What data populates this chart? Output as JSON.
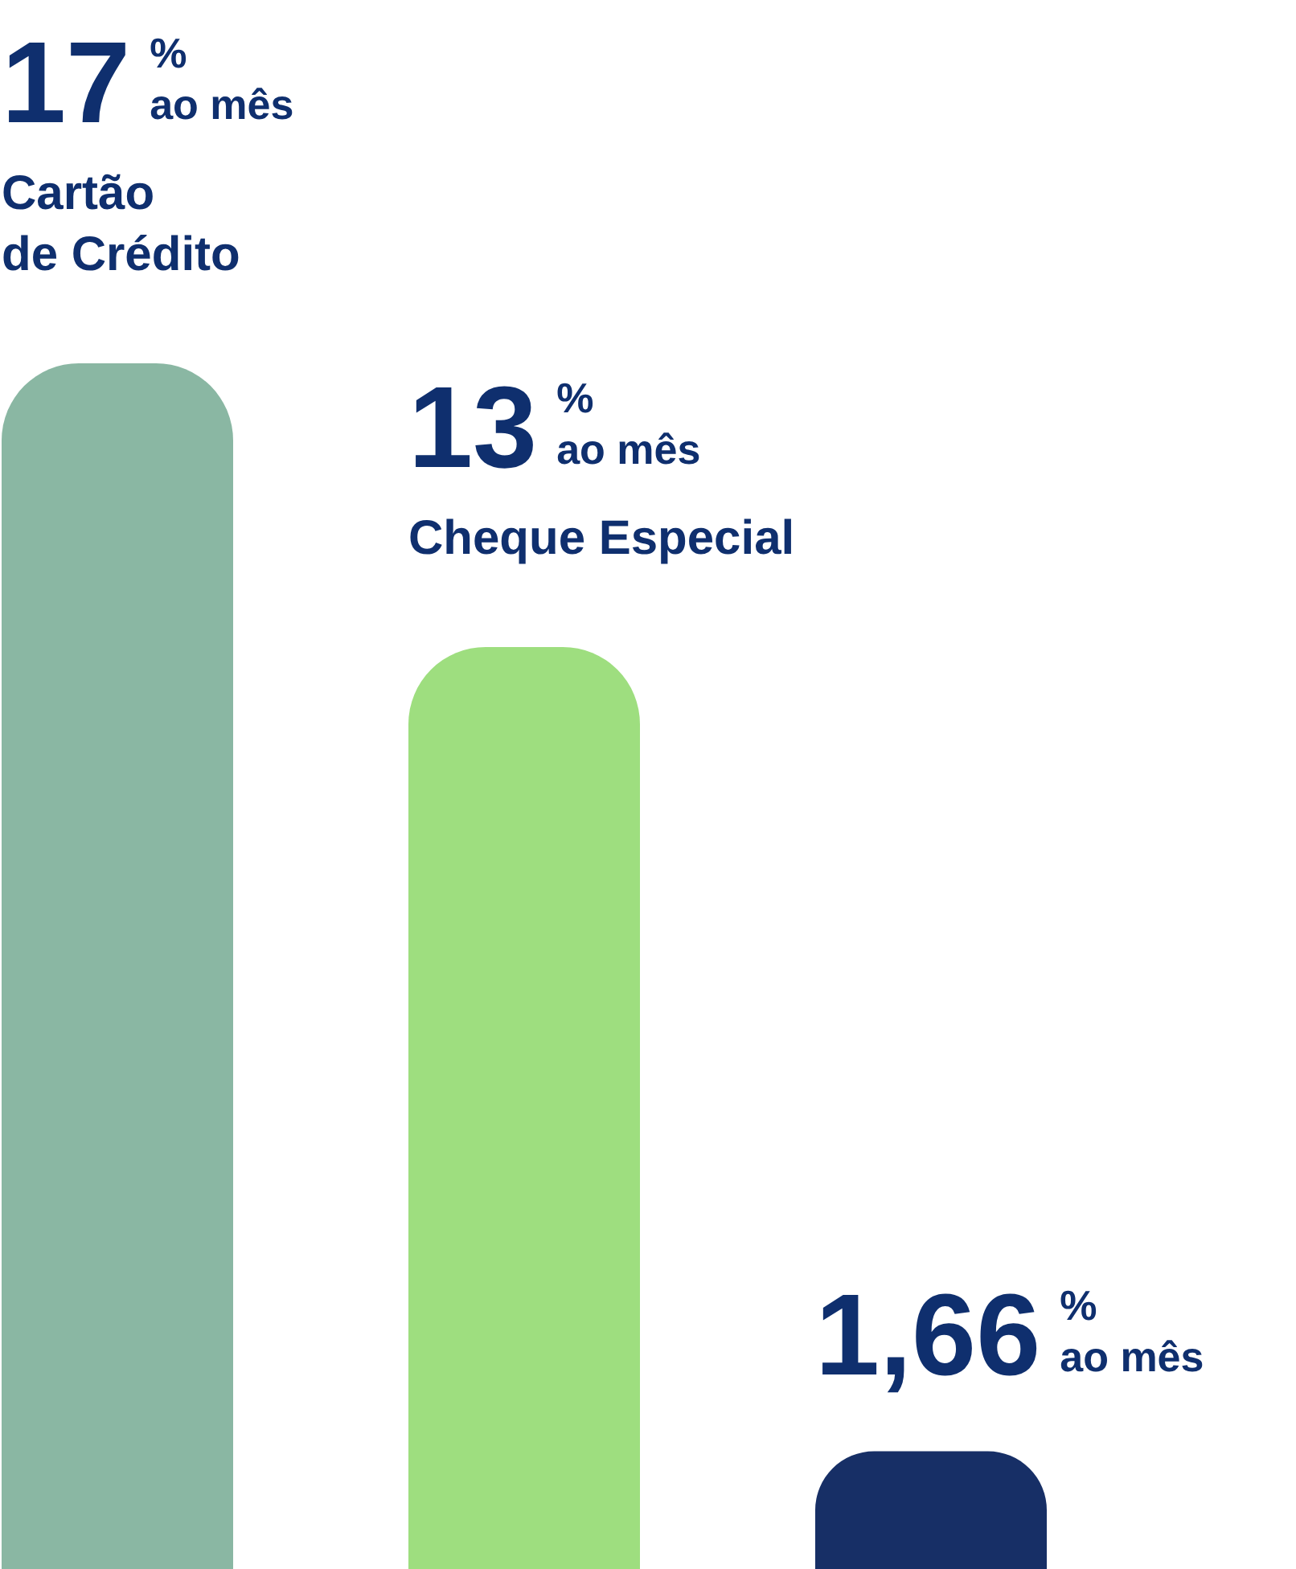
{
  "chart_data": {
    "type": "bar",
    "categories": [
      "Cartão de Crédito",
      "Cheque Especial",
      null
    ],
    "values": [
      17,
      13,
      1.66
    ],
    "colors": [
      "#8ab7a3",
      "#9ede7f",
      "#172f66"
    ],
    "value_labels": [
      "17 % ao mês",
      "13 % ao mês",
      "1,66 % ao mês"
    ]
  }
}
